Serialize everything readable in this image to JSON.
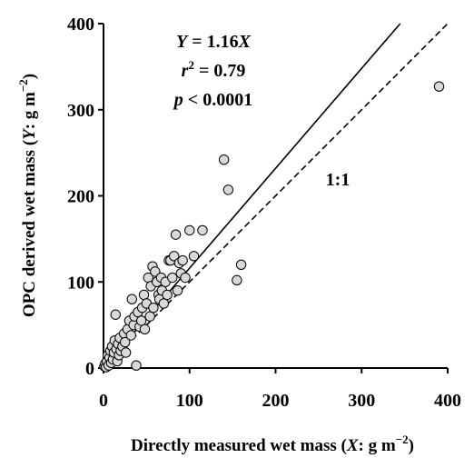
{
  "chart_data": {
    "type": "scatter",
    "title": "",
    "xlabel": {
      "pre": "Directly measured wet mass (",
      "var": "X",
      "post": ": g m",
      "sup": "−2",
      "end": ")"
    },
    "ylabel": {
      "pre": "OPC derived wet mass (",
      "var": "Y",
      "post": ": g m",
      "sup": "−2",
      "end": ")"
    },
    "xlim": [
      0,
      400
    ],
    "ylim": [
      0,
      400
    ],
    "x_ticks": [
      "0",
      "100",
      "200",
      "300",
      "400"
    ],
    "y_ticks": [
      "0",
      "100",
      "200",
      "300",
      "400"
    ],
    "grid": false,
    "regression": {
      "slope": 1.16,
      "intercept": 0,
      "style": "solid"
    },
    "identity_line": {
      "slope": 1,
      "intercept": 0,
      "style": "dashed",
      "label": "1:1"
    },
    "annotations": {
      "equation": {
        "lhs": "Y",
        "eq": " = 1.16",
        "rhs": "X"
      },
      "r2": {
        "sym": "r",
        "sup": "2",
        "rest": " = 0.79"
      },
      "p": {
        "sym": "p",
        "rest": " < 0.0001"
      }
    },
    "marker": {
      "fill": "#d9d9d9",
      "stroke": "#000000"
    },
    "points": [
      [
        1,
        2
      ],
      [
        2,
        5
      ],
      [
        3,
        1
      ],
      [
        4,
        8
      ],
      [
        5,
        15
      ],
      [
        6,
        3
      ],
      [
        7,
        12
      ],
      [
        8,
        20
      ],
      [
        9,
        6
      ],
      [
        10,
        25
      ],
      [
        11,
        10
      ],
      [
        12,
        18
      ],
      [
        13,
        32
      ],
      [
        14,
        62
      ],
      [
        15,
        22
      ],
      [
        16,
        8
      ],
      [
        17,
        28
      ],
      [
        18,
        15
      ],
      [
        19,
        35
      ],
      [
        20,
        20
      ],
      [
        22,
        25
      ],
      [
        24,
        40
      ],
      [
        25,
        30
      ],
      [
        26,
        18
      ],
      [
        28,
        45
      ],
      [
        30,
        55
      ],
      [
        32,
        38
      ],
      [
        33,
        80
      ],
      [
        35,
        50
      ],
      [
        36,
        60
      ],
      [
        38,
        3
      ],
      [
        40,
        65
      ],
      [
        42,
        48
      ],
      [
        44,
        55
      ],
      [
        45,
        70
      ],
      [
        47,
        85
      ],
      [
        48,
        45
      ],
      [
        50,
        75
      ],
      [
        52,
        105
      ],
      [
        54,
        60
      ],
      [
        55,
        95
      ],
      [
        57,
        118
      ],
      [
        58,
        70
      ],
      [
        60,
        112
      ],
      [
        62,
        100
      ],
      [
        64,
        85
      ],
      [
        65,
        80
      ],
      [
        67,
        105
      ],
      [
        68,
        90
      ],
      [
        70,
        75
      ],
      [
        72,
        100
      ],
      [
        74,
        85
      ],
      [
        76,
        125
      ],
      [
        78,
        125
      ],
      [
        80,
        105
      ],
      [
        82,
        130
      ],
      [
        84,
        155
      ],
      [
        86,
        90
      ],
      [
        88,
        122
      ],
      [
        90,
        110
      ],
      [
        92,
        125
      ],
      [
        95,
        105
      ],
      [
        100,
        160
      ],
      [
        105,
        130
      ],
      [
        115,
        160
      ],
      [
        140,
        242
      ],
      [
        145,
        207
      ],
      [
        155,
        102
      ],
      [
        160,
        120
      ],
      [
        390,
        327
      ]
    ]
  }
}
